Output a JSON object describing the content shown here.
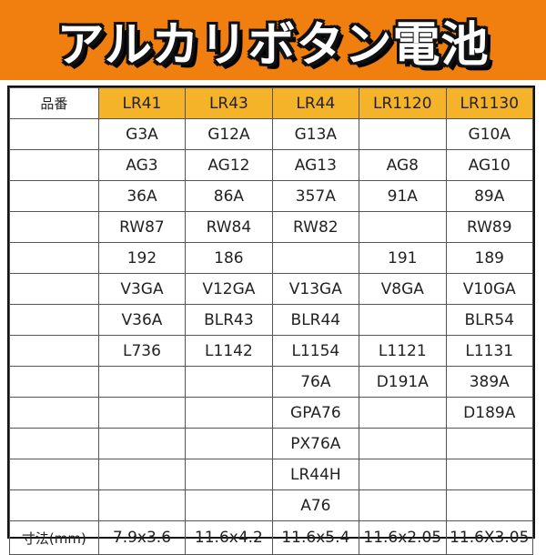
{
  "title": "アルカリボタン電池",
  "colors": {
    "banner": "#f07f10",
    "header_cells": "#f5b32a"
  },
  "table": {
    "corner_label": "品番",
    "columns": [
      "LR41",
      "LR43",
      "LR44",
      "LR1120",
      "LR1130"
    ],
    "rows": [
      [
        "G3A",
        "G12A",
        "G13A",
        "",
        "G10A"
      ],
      [
        "AG3",
        "AG12",
        "AG13",
        "AG8",
        "AG10"
      ],
      [
        "36A",
        "86A",
        "357A",
        "91A",
        "89A"
      ],
      [
        "RW87",
        "RW84",
        "RW82",
        "",
        "RW89"
      ],
      [
        "192",
        "186",
        "",
        "191",
        "189"
      ],
      [
        "V3GA",
        "V12GA",
        "V13GA",
        "V8GA",
        "V10GA"
      ],
      [
        "V36A",
        "BLR43",
        "BLR44",
        "",
        "BLR54"
      ],
      [
        "L736",
        "L1142",
        "L1154",
        "L1121",
        "L1131"
      ],
      [
        "",
        "",
        "76A",
        "D191A",
        "389A"
      ],
      [
        "",
        "",
        "GPA76",
        "",
        "D189A"
      ],
      [
        "",
        "",
        "PX76A",
        "",
        ""
      ],
      [
        "",
        "",
        "LR44H",
        "",
        ""
      ],
      [
        "",
        "",
        "A76",
        "",
        ""
      ]
    ],
    "dimension_label": "寸法(mm)",
    "dimensions": [
      "7.9x3.6",
      "11.6x4.2",
      "11.6x5.4",
      "11.6x2.05",
      "11.6X3.05"
    ]
  }
}
